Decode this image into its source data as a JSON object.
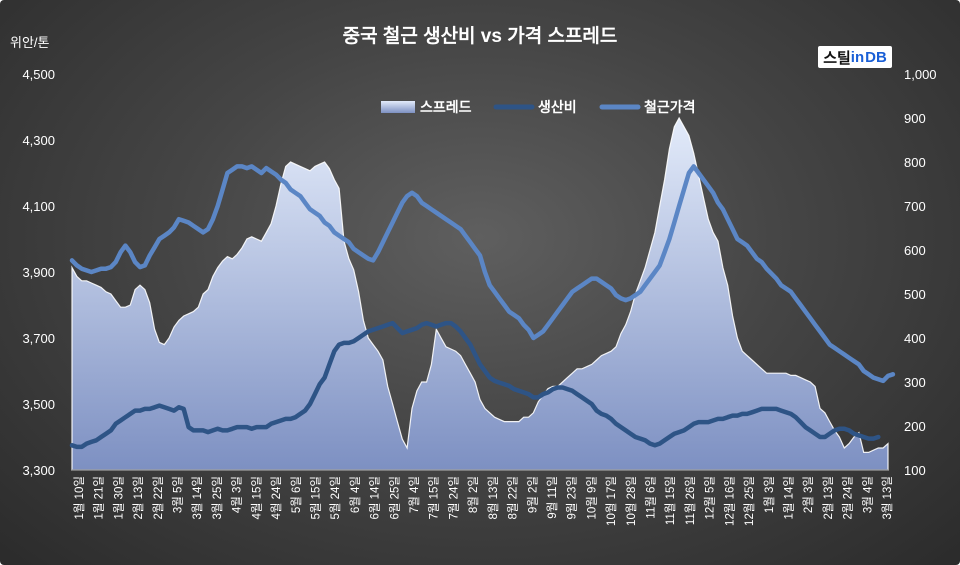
{
  "brand": {
    "text": "스틸in DB",
    "prefix": "스틸",
    "highlight": "in",
    "suffix": " DB"
  },
  "colors": {
    "spread_fill_top": "#dfe8f8",
    "spread_fill_bottom": "#8194c3",
    "cost_line": "#2e5486",
    "price_line": "#5b86c5",
    "text": "#ffffff"
  },
  "chart_data": {
    "type": "line",
    "title": "중국 철근 생산비 vs 가격 스프레드",
    "left_axis_label": "위안/톤",
    "left_ylim": [
      3300,
      4500
    ],
    "left_ticks": [
      "3,300",
      "3,500",
      "3,700",
      "3,900",
      "4,100",
      "4,300",
      "4,500"
    ],
    "right_ylim": [
      100,
      1000
    ],
    "right_ticks": [
      "100",
      "200",
      "300",
      "400",
      "500",
      "600",
      "700",
      "800",
      "900",
      "1,000"
    ],
    "legend_position": "top",
    "grid": false,
    "x_tick_labels": [
      "1월 10일",
      "1월 21일",
      "1월 30일",
      "2월 13일",
      "2월 22일",
      "3월 5일",
      "3월 14일",
      "3월 25일",
      "4월 3일",
      "4월 15일",
      "4월 24일",
      "5월 6일",
      "5월 15일",
      "5월 24일",
      "6월 4일",
      "6월 14일",
      "6월 25일",
      "7월 4일",
      "7월 15일",
      "7월 24일",
      "8월 2일",
      "8월 13일",
      "8월 22일",
      "9월 2일",
      "9월 11일",
      "9월 23일",
      "10월 9일",
      "10월 17일",
      "10월 28일",
      "11월 6일",
      "11월 15일",
      "11월 26일",
      "12월 5일",
      "12월 16일",
      "12월 25일",
      "1월 3일",
      "1월 14일",
      "2월 3일",
      "2월 13일",
      "2월 24일",
      "3월 4일",
      "3월 13일"
    ],
    "series": [
      {
        "name": "스프레드",
        "type": "area",
        "axis": "right",
        "values": [
          560,
          540,
          530,
          530,
          525,
          520,
          515,
          505,
          500,
          485,
          470,
          470,
          475,
          510,
          520,
          510,
          480,
          420,
          390,
          385,
          400,
          425,
          440,
          450,
          455,
          460,
          470,
          500,
          510,
          540,
          560,
          575,
          585,
          580,
          590,
          605,
          625,
          630,
          625,
          620,
          640,
          660,
          700,
          750,
          790,
          800,
          795,
          790,
          785,
          780,
          790,
          795,
          800,
          785,
          760,
          740,
          620,
          580,
          555,
          505,
          440,
          400,
          385,
          370,
          350,
          290,
          250,
          210,
          170,
          150,
          240,
          280,
          300,
          300,
          340,
          420,
          400,
          380,
          375,
          370,
          360,
          340,
          320,
          300,
          260,
          240,
          230,
          220,
          215,
          210,
          210,
          210,
          210,
          220,
          220,
          230,
          255,
          270,
          285,
          290,
          290,
          300,
          310,
          320,
          330,
          330,
          335,
          340,
          350,
          360,
          365,
          370,
          380,
          410,
          430,
          460,
          500,
          530,
          560,
          600,
          640,
          700,
          760,
          830,
          880,
          900,
          880,
          860,
          820,
          770,
          720,
          670,
          640,
          620,
          560,
          520,
          450,
          400,
          370,
          360,
          350,
          340,
          330,
          320,
          320,
          320,
          320,
          320,
          315,
          315,
          310,
          305,
          300,
          290,
          240,
          230,
          210,
          190,
          175,
          150,
          160,
          175,
          185,
          140,
          140,
          145,
          150,
          150,
          160
        ],
        "notes": []
      },
      {
        "name": "생산비",
        "type": "line",
        "axis": "left",
        "values": [
          3375,
          3370,
          3370,
          3380,
          3385,
          3390,
          3400,
          3410,
          3420,
          3440,
          3450,
          3460,
          3470,
          3480,
          3480,
          3485,
          3485,
          3490,
          3495,
          3490,
          3485,
          3480,
          3490,
          3485,
          3430,
          3420,
          3420,
          3420,
          3415,
          3420,
          3425,
          3420,
          3420,
          3425,
          3430,
          3430,
          3430,
          3425,
          3430,
          3430,
          3430,
          3440,
          3445,
          3450,
          3455,
          3455,
          3460,
          3470,
          3480,
          3500,
          3530,
          3560,
          3580,
          3620,
          3660,
          3680,
          3685,
          3685,
          3690,
          3700,
          3710,
          3720,
          3725,
          3730,
          3735,
          3740,
          3745,
          3730,
          3715,
          3720,
          3725,
          3730,
          3740,
          3745,
          3740,
          3735,
          3740,
          3745,
          3745,
          3735,
          3720,
          3700,
          3680,
          3650,
          3620,
          3600,
          3580,
          3570,
          3565,
          3560,
          3555,
          3545,
          3540,
          3535,
          3530,
          3520,
          3520,
          3530,
          3535,
          3545,
          3550,
          3550,
          3545,
          3540,
          3530,
          3520,
          3510,
          3500,
          3480,
          3470,
          3465,
          3455,
          3440,
          3430,
          3420,
          3410,
          3400,
          3395,
          3390,
          3380,
          3375,
          3380,
          3390,
          3400,
          3410,
          3415,
          3420,
          3430,
          3440,
          3445,
          3445,
          3445,
          3450,
          3455,
          3455,
          3460,
          3465,
          3465,
          3470,
          3470,
          3475,
          3480,
          3485,
          3485,
          3485,
          3485,
          3480,
          3475,
          3470,
          3460,
          3445,
          3430,
          3420,
          3410,
          3400,
          3400,
          3410,
          3420,
          3425,
          3425,
          3420,
          3410,
          3405,
          3400,
          3395,
          3395,
          3400
        ]
      },
      {
        "name": "철근가격",
        "type": "line",
        "axis": "left",
        "values": [
          3935,
          3920,
          3910,
          3905,
          3900,
          3905,
          3910,
          3910,
          3915,
          3930,
          3960,
          3980,
          3960,
          3930,
          3915,
          3920,
          3950,
          3975,
          4000,
          4010,
          4020,
          4035,
          4060,
          4055,
          4050,
          4040,
          4030,
          4020,
          4030,
          4060,
          4100,
          4150,
          4200,
          4210,
          4220,
          4220,
          4215,
          4220,
          4210,
          4200,
          4215,
          4205,
          4195,
          4180,
          4170,
          4150,
          4140,
          4130,
          4110,
          4090,
          4080,
          4070,
          4050,
          4040,
          4020,
          4010,
          4000,
          3990,
          3970,
          3960,
          3950,
          3940,
          3935,
          3960,
          3990,
          4020,
          4050,
          4080,
          4110,
          4130,
          4140,
          4130,
          4110,
          4100,
          4090,
          4080,
          4070,
          4060,
          4050,
          4040,
          4030,
          4010,
          3990,
          3970,
          3950,
          3900,
          3860,
          3840,
          3820,
          3800,
          3780,
          3770,
          3760,
          3740,
          3725,
          3700,
          3710,
          3720,
          3740,
          3760,
          3780,
          3800,
          3820,
          3840,
          3850,
          3860,
          3870,
          3880,
          3880,
          3870,
          3860,
          3850,
          3830,
          3820,
          3815,
          3820,
          3830,
          3840,
          3860,
          3880,
          3900,
          3920,
          3960,
          4000,
          4050,
          4100,
          4150,
          4200,
          4220,
          4200,
          4180,
          4160,
          4140,
          4110,
          4090,
          4060,
          4030,
          4000,
          3990,
          3980,
          3960,
          3940,
          3930,
          3910,
          3895,
          3880,
          3860,
          3850,
          3840,
          3820,
          3800,
          3780,
          3760,
          3740,
          3720,
          3700,
          3680,
          3670,
          3660,
          3650,
          3640,
          3630,
          3620,
          3600,
          3590,
          3580,
          3575,
          3570,
          3585,
          3590
        ]
      }
    ]
  }
}
